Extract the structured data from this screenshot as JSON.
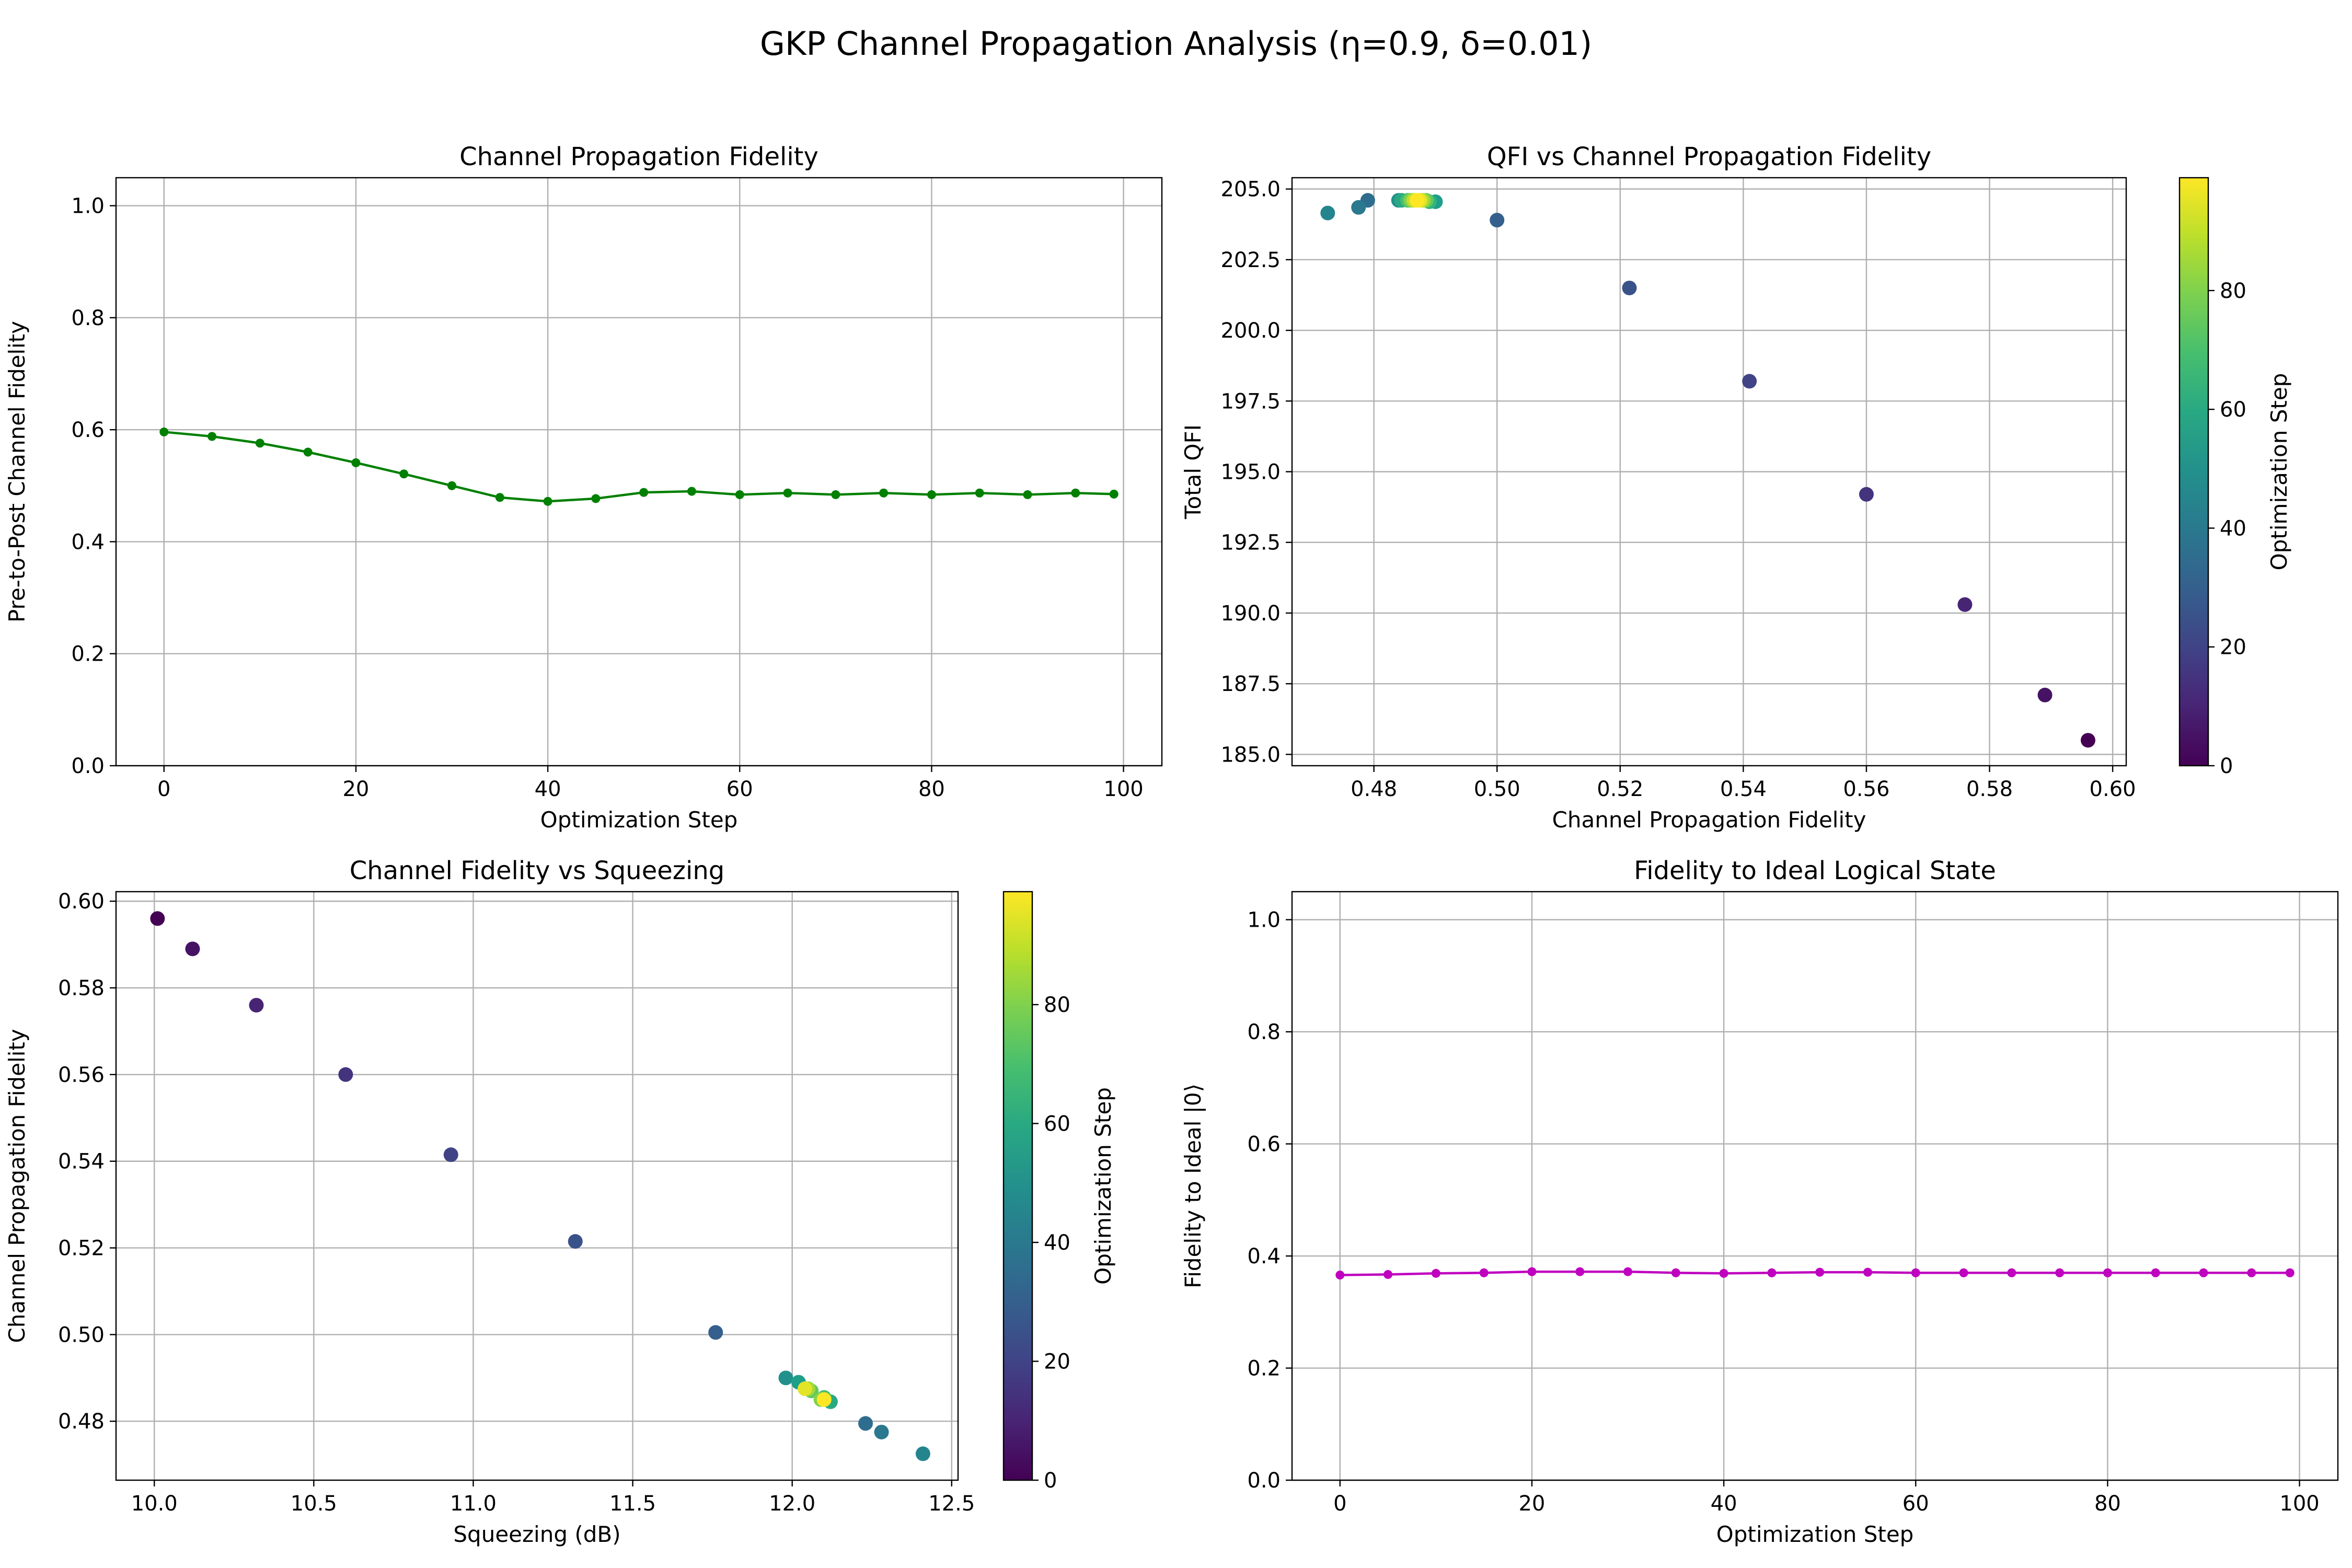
{
  "suptitle": "GKP Channel Propagation Analysis (η=0.9, δ=0.01)",
  "colormap": "viridis",
  "chart_data": [
    {
      "id": "p1",
      "type": "line",
      "title": "Channel Propagation Fidelity",
      "xlabel": "Optimization Step",
      "ylabel": "Pre-to-Post Channel Fidelity",
      "xlim": [
        -5,
        104
      ],
      "ylim": [
        0,
        1.05
      ],
      "xticks": [
        0,
        20,
        40,
        60,
        80,
        100
      ],
      "xticklabels": [
        "0",
        "20",
        "40",
        "60",
        "80",
        "100"
      ],
      "yticks": [
        0,
        0.2,
        0.4,
        0.6,
        0.8,
        1.0
      ],
      "yticklabels": [
        "0.0",
        "0.2",
        "0.4",
        "0.6",
        "0.8",
        "1.0"
      ],
      "grid": true,
      "color": "#008000",
      "x": [
        0,
        5,
        10,
        15,
        20,
        25,
        30,
        35,
        40,
        45,
        50,
        55,
        60,
        65,
        70,
        75,
        80,
        85,
        90,
        95,
        99
      ],
      "y": [
        0.596,
        0.588,
        0.576,
        0.56,
        0.541,
        0.521,
        0.5,
        0.479,
        0.472,
        0.477,
        0.488,
        0.49,
        0.484,
        0.487,
        0.484,
        0.487,
        0.484,
        0.487,
        0.484,
        0.487,
        0.485
      ]
    },
    {
      "id": "p2",
      "type": "scatter",
      "title": "QFI vs Channel Propagation Fidelity",
      "xlabel": "Channel Propagation Fidelity",
      "ylabel": "Total QFI",
      "xlim": [
        0.4667,
        0.6022
      ],
      "ylim": [
        184.6,
        205.4
      ],
      "xticks": [
        0.48,
        0.5,
        0.52,
        0.54,
        0.56,
        0.58,
        0.6
      ],
      "xticklabels": [
        "0.48",
        "0.50",
        "0.52",
        "0.54",
        "0.56",
        "0.58",
        "0.60"
      ],
      "yticks": [
        185.0,
        187.5,
        190.0,
        192.5,
        195.0,
        197.5,
        200.0,
        202.5,
        205.0
      ],
      "yticklabels": [
        "185.0",
        "187.5",
        "190.0",
        "192.5",
        "195.0",
        "197.5",
        "200.0",
        "202.5",
        "205.0"
      ],
      "grid": true,
      "colorbar": {
        "label": "Optimization Step",
        "range": [
          0,
          99
        ],
        "ticks": [
          0,
          20,
          40,
          60,
          80
        ],
        "ticklabels": [
          "0",
          "20",
          "40",
          "60",
          "80"
        ]
      },
      "x": [
        0.596,
        0.589,
        0.576,
        0.56,
        0.541,
        0.5215,
        0.5,
        0.479,
        0.4775,
        0.4725,
        0.484,
        0.49,
        0.4845,
        0.489,
        0.4855,
        0.4885,
        0.486,
        0.488,
        0.4865,
        0.4875,
        0.487
      ],
      "y": [
        185.5,
        187.1,
        190.3,
        194.2,
        198.2,
        201.5,
        203.9,
        204.6,
        204.35,
        204.15,
        204.6,
        204.55,
        204.6,
        204.55,
        204.6,
        204.6,
        204.6,
        204.6,
        204.6,
        204.6,
        204.6
      ],
      "c": [
        0,
        5,
        10,
        15,
        20,
        25,
        30,
        35,
        40,
        45,
        50,
        55,
        60,
        65,
        70,
        75,
        80,
        85,
        90,
        95,
        99
      ]
    },
    {
      "id": "p3",
      "type": "scatter",
      "title": "Channel Fidelity vs Squeezing",
      "xlabel": "Squeezing (dB)",
      "ylabel": "Channel Propagation Fidelity",
      "xlim": [
        9.88,
        12.52
      ],
      "ylim": [
        0.4664,
        0.6022
      ],
      "xticks": [
        10.0,
        10.5,
        11.0,
        11.5,
        12.0,
        12.5
      ],
      "xticklabels": [
        "10.0",
        "10.5",
        "11.0",
        "11.5",
        "12.0",
        "12.5"
      ],
      "yticks": [
        0.48,
        0.5,
        0.52,
        0.54,
        0.56,
        0.58,
        0.6
      ],
      "yticklabels": [
        "0.48",
        "0.50",
        "0.52",
        "0.54",
        "0.56",
        "0.58",
        "0.60"
      ],
      "grid": true,
      "colorbar": {
        "label": "Optimization Step",
        "range": [
          0,
          99
        ],
        "ticks": [
          0,
          20,
          40,
          60,
          80
        ],
        "ticklabels": [
          "0",
          "20",
          "40",
          "60",
          "80"
        ]
      },
      "x": [
        10.01,
        10.12,
        10.32,
        10.6,
        10.93,
        11.32,
        11.76,
        12.23,
        12.28,
        12.41,
        11.98,
        12.02,
        12.12,
        12.05,
        12.1,
        12.06,
        12.09,
        12.05,
        12.1,
        12.04,
        12.1
      ],
      "y": [
        0.596,
        0.589,
        0.576,
        0.56,
        0.5415,
        0.5215,
        0.5005,
        0.4795,
        0.4775,
        0.4725,
        0.49,
        0.489,
        0.4845,
        0.4875,
        0.4855,
        0.487,
        0.485,
        0.4875,
        0.485,
        0.4875,
        0.485
      ],
      "c": [
        0,
        5,
        10,
        15,
        20,
        25,
        30,
        35,
        40,
        45,
        50,
        55,
        60,
        65,
        70,
        75,
        80,
        85,
        90,
        95,
        99
      ]
    },
    {
      "id": "p4",
      "type": "line",
      "title": "Fidelity to Ideal Logical State",
      "xlabel": "Optimization Step",
      "ylabel": "Fidelity to Ideal |0⟩",
      "xlim": [
        -5,
        104
      ],
      "ylim": [
        0,
        1.05
      ],
      "xticks": [
        0,
        20,
        40,
        60,
        80,
        100
      ],
      "xticklabels": [
        "0",
        "20",
        "40",
        "60",
        "80",
        "100"
      ],
      "yticks": [
        0,
        0.2,
        0.4,
        0.6,
        0.8,
        1.0
      ],
      "yticklabels": [
        "0.0",
        "0.2",
        "0.4",
        "0.6",
        "0.8",
        "1.0"
      ],
      "grid": true,
      "color": "#bf00bf",
      "x": [
        0,
        5,
        10,
        15,
        20,
        25,
        30,
        35,
        40,
        45,
        50,
        55,
        60,
        65,
        70,
        75,
        80,
        85,
        90,
        95,
        99
      ],
      "y": [
        0.366,
        0.367,
        0.369,
        0.37,
        0.372,
        0.372,
        0.372,
        0.37,
        0.369,
        0.37,
        0.371,
        0.371,
        0.37,
        0.37,
        0.37,
        0.37,
        0.37,
        0.37,
        0.37,
        0.37,
        0.37
      ]
    }
  ]
}
